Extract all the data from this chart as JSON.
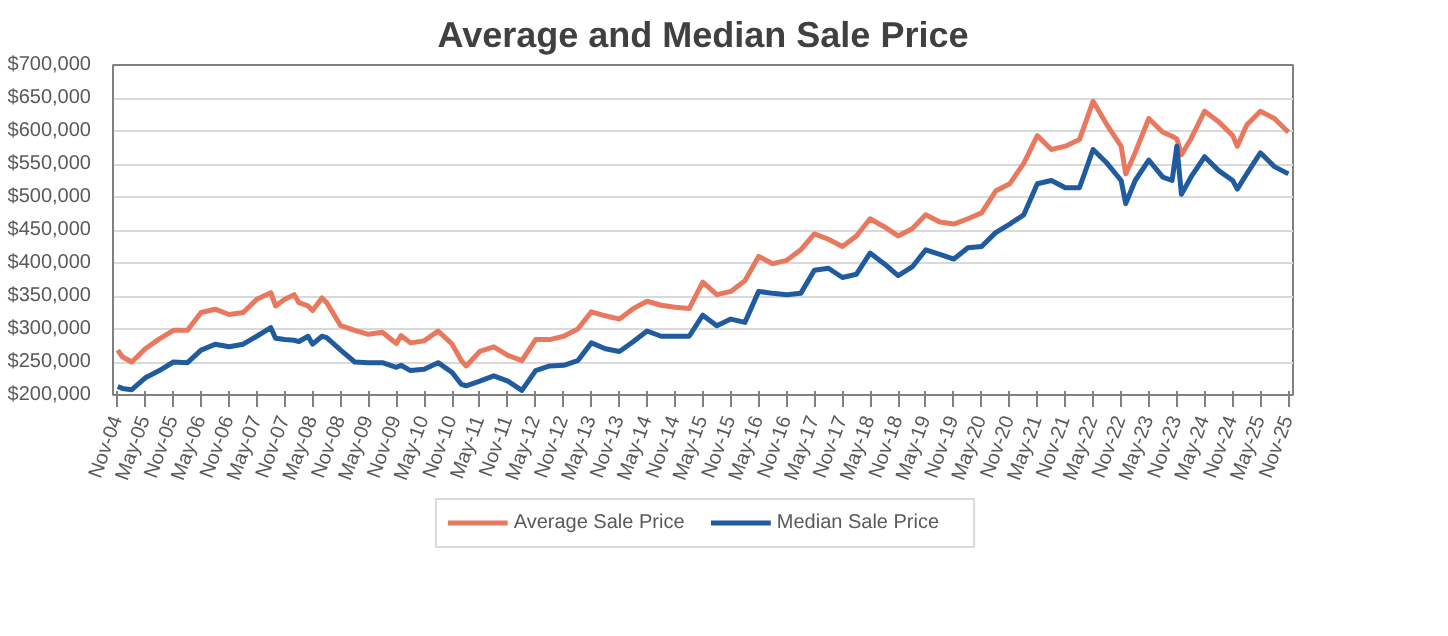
{
  "chart_data": {
    "type": "line",
    "title": "Average and Median Sale Price",
    "x": [
      "2004-11",
      "2004-12",
      "2005-02",
      "2005-05",
      "2005-08",
      "2005-11",
      "2006-02",
      "2006-05",
      "2006-08",
      "2006-11",
      "2007-02",
      "2007-05",
      "2007-08",
      "2007-09",
      "2007-11",
      "2008-01",
      "2008-02",
      "2008-04",
      "2008-05",
      "2008-07",
      "2008-08",
      "2008-11",
      "2009-02",
      "2009-05",
      "2009-08",
      "2009-11",
      "2009-12",
      "2010-02",
      "2010-05",
      "2010-08",
      "2010-11",
      "2011-01",
      "2011-02",
      "2011-05",
      "2011-08",
      "2011-11",
      "2012-02",
      "2012-05",
      "2012-08",
      "2012-11",
      "2013-02",
      "2013-05",
      "2013-08",
      "2013-11",
      "2014-02",
      "2014-05",
      "2014-08",
      "2014-11",
      "2015-02",
      "2015-05",
      "2015-08",
      "2015-11",
      "2016-02",
      "2016-05",
      "2016-08",
      "2016-11",
      "2017-02",
      "2017-05",
      "2017-08",
      "2017-11",
      "2018-02",
      "2018-05",
      "2018-08",
      "2018-11",
      "2019-02",
      "2019-05",
      "2019-08",
      "2019-11",
      "2020-02",
      "2020-05",
      "2020-08",
      "2020-11",
      "2021-02",
      "2021-05",
      "2021-08",
      "2021-11",
      "2022-02",
      "2022-05",
      "2022-08",
      "2022-11",
      "2022-12",
      "2023-02",
      "2023-05",
      "2023-08",
      "2023-10",
      "2023-11",
      "2023-12",
      "2024-02",
      "2024-05",
      "2024-08",
      "2024-11",
      "2024-12",
      "2025-02",
      "2025-05",
      "2025-08",
      "2025-11"
    ],
    "series": [
      {
        "name": "Average Sale Price",
        "color": "#e8785e",
        "values": [
          268000,
          258000,
          250000,
          270000,
          285000,
          298000,
          298000,
          325000,
          330000,
          322000,
          325000,
          345000,
          355000,
          335000,
          345000,
          352000,
          340000,
          335000,
          328000,
          347000,
          340000,
          305000,
          298000,
          292000,
          295000,
          278000,
          290000,
          279000,
          282000,
          297000,
          277000,
          252000,
          244000,
          266000,
          273000,
          260000,
          252000,
          284000,
          284000,
          289000,
          300000,
          326000,
          320000,
          315000,
          331000,
          342000,
          336000,
          333000,
          331000,
          371000,
          352000,
          357000,
          373000,
          410000,
          399000,
          404000,
          420000,
          444000,
          436000,
          425000,
          441000,
          467000,
          455000,
          441000,
          452000,
          473000,
          462000,
          459000,
          467000,
          476000,
          509000,
          520000,
          551000,
          593000,
          572000,
          577000,
          587000,
          645000,
          609000,
          577000,
          535000,
          567000,
          619000,
          598000,
          592000,
          588000,
          564000,
          588000,
          630000,
          614000,
          593000,
          577000,
          609000,
          630000,
          619000,
          598000
        ]
      },
      {
        "name": "Median Sale Price",
        "color": "#1f5b9e",
        "values": [
          213000,
          210000,
          208000,
          226000,
          237000,
          250000,
          249000,
          268000,
          277000,
          273000,
          277000,
          289000,
          302000,
          286000,
          284000,
          283000,
          281000,
          289000,
          277000,
          289000,
          287000,
          268000,
          250000,
          249000,
          249000,
          242000,
          245000,
          237000,
          239000,
          249000,
          234000,
          216000,
          214000,
          221000,
          229000,
          221000,
          207000,
          237000,
          244000,
          245000,
          252000,
          279000,
          270000,
          266000,
          281000,
          297000,
          289000,
          289000,
          289000,
          321000,
          305000,
          315000,
          310000,
          357000,
          354000,
          352000,
          354000,
          389000,
          392000,
          378000,
          383000,
          415000,
          399000,
          381000,
          394000,
          420000,
          413000,
          406000,
          423000,
          425000,
          446000,
          459000,
          473000,
          520000,
          525000,
          514000,
          514000,
          572000,
          551000,
          525000,
          490000,
          525000,
          556000,
          530000,
          525000,
          577000,
          504000,
          530000,
          561000,
          540000,
          525000,
          512000,
          535000,
          567000,
          546000,
          535000
        ]
      }
    ],
    "xlim": [
      "2004-10",
      "2025-12"
    ],
    "xticks": [
      {
        "value": "2004-11",
        "label": "Nov-04"
      },
      {
        "value": "2005-05",
        "label": "May-05"
      },
      {
        "value": "2005-11",
        "label": "Nov-05"
      },
      {
        "value": "2006-05",
        "label": "May-06"
      },
      {
        "value": "2006-11",
        "label": "Nov-06"
      },
      {
        "value": "2007-05",
        "label": "May-07"
      },
      {
        "value": "2007-11",
        "label": "Nov-07"
      },
      {
        "value": "2008-05",
        "label": "May-08"
      },
      {
        "value": "2008-11",
        "label": "Nov-08"
      },
      {
        "value": "2009-05",
        "label": "May-09"
      },
      {
        "value": "2009-11",
        "label": "Nov-09"
      },
      {
        "value": "2010-05",
        "label": "May-10"
      },
      {
        "value": "2010-11",
        "label": "Nov-10"
      },
      {
        "value": "2011-05",
        "label": "May-11"
      },
      {
        "value": "2011-11",
        "label": "Nov-11"
      },
      {
        "value": "2012-05",
        "label": "May-12"
      },
      {
        "value": "2012-11",
        "label": "Nov-12"
      },
      {
        "value": "2013-05",
        "label": "May-13"
      },
      {
        "value": "2013-11",
        "label": "Nov-13"
      },
      {
        "value": "2014-05",
        "label": "May-14"
      },
      {
        "value": "2014-11",
        "label": "Nov-14"
      },
      {
        "value": "2015-05",
        "label": "May-15"
      },
      {
        "value": "2015-11",
        "label": "Nov-15"
      },
      {
        "value": "2016-05",
        "label": "May-16"
      },
      {
        "value": "2016-11",
        "label": "Nov-16"
      },
      {
        "value": "2017-05",
        "label": "May-17"
      },
      {
        "value": "2017-11",
        "label": "Nov-17"
      },
      {
        "value": "2018-05",
        "label": "May-18"
      },
      {
        "value": "2018-11",
        "label": "Nov-18"
      },
      {
        "value": "2019-05",
        "label": "May-19"
      },
      {
        "value": "2019-11",
        "label": "Nov-19"
      },
      {
        "value": "2020-05",
        "label": "May-20"
      },
      {
        "value": "2020-11",
        "label": "Nov-20"
      },
      {
        "value": "2021-05",
        "label": "May-21"
      },
      {
        "value": "2021-11",
        "label": "Nov-21"
      },
      {
        "value": "2022-05",
        "label": "May-22"
      },
      {
        "value": "2022-11",
        "label": "Nov-22"
      },
      {
        "value": "2023-05",
        "label": "May-23"
      },
      {
        "value": "2023-11",
        "label": "Nov-23"
      },
      {
        "value": "2024-05",
        "label": "May-24"
      },
      {
        "value": "2024-11",
        "label": "Nov-24"
      },
      {
        "value": "2025-05",
        "label": "May-25"
      },
      {
        "value": "2025-11",
        "label": "Nov-25"
      }
    ],
    "ylim": [
      200000,
      700000
    ],
    "yticks": [
      {
        "value": 200000,
        "label": "$200,000"
      },
      {
        "value": 250000,
        "label": "$250,000"
      },
      {
        "value": 300000,
        "label": "$300,000"
      },
      {
        "value": 350000,
        "label": "$350,000"
      },
      {
        "value": 400000,
        "label": "$400,000"
      },
      {
        "value": 450000,
        "label": "$450,000"
      },
      {
        "value": 500000,
        "label": "$500,000"
      },
      {
        "value": 550000,
        "label": "$550,000"
      },
      {
        "value": 600000,
        "label": "$600,000"
      },
      {
        "value": 650000,
        "label": "$650,000"
      },
      {
        "value": 700000,
        "label": "$700,000"
      }
    ],
    "grid": "y",
    "legend": "bottom",
    "marker": "none",
    "line_style": "solid"
  }
}
